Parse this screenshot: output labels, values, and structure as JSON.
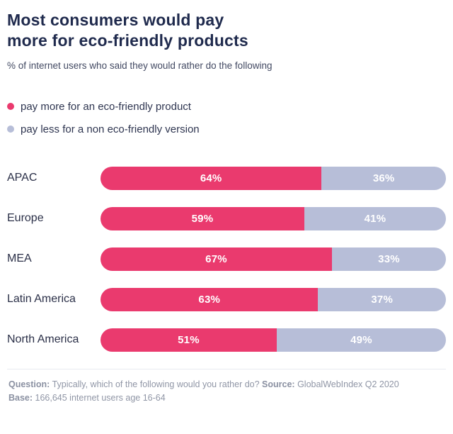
{
  "header": {
    "title": "Most consumers would pay\nmore for eco-friendly products",
    "subtitle": "% of internet users who said they would rather do the following"
  },
  "legend": [
    {
      "label": "pay more for an eco-friendly product",
      "color": "#ea3a6e"
    },
    {
      "label": "pay less for a non eco-friendly version",
      "color": "#b7bed8"
    }
  ],
  "chart_data": {
    "type": "bar",
    "orientation": "horizontal",
    "stacked": true,
    "title": "Most consumers would pay more for eco-friendly products",
    "subtitle": "% of internet users who said they would rather do the following",
    "categories": [
      "APAC",
      "Europe",
      "MEA",
      "Latin America",
      "North America"
    ],
    "series": [
      {
        "name": "pay more for an eco-friendly product",
        "color": "#ea3a6e",
        "values": [
          64,
          59,
          67,
          63,
          51
        ]
      },
      {
        "name": "pay less for a non eco-friendly version",
        "color": "#b7bed8",
        "values": [
          36,
          41,
          33,
          37,
          49
        ]
      }
    ],
    "value_suffix": "%",
    "xlim": [
      0,
      100
    ],
    "grid": false,
    "legend_position": "top-left"
  },
  "footer": {
    "question_label": "Question:",
    "question_text": " Typically, which of the following would you rather do? ",
    "source_label": "Source:",
    "source_text": " GlobalWebIndex Q2 2020",
    "base_label": "Base:",
    "base_text": " 166,645 internet users age 16-64"
  }
}
